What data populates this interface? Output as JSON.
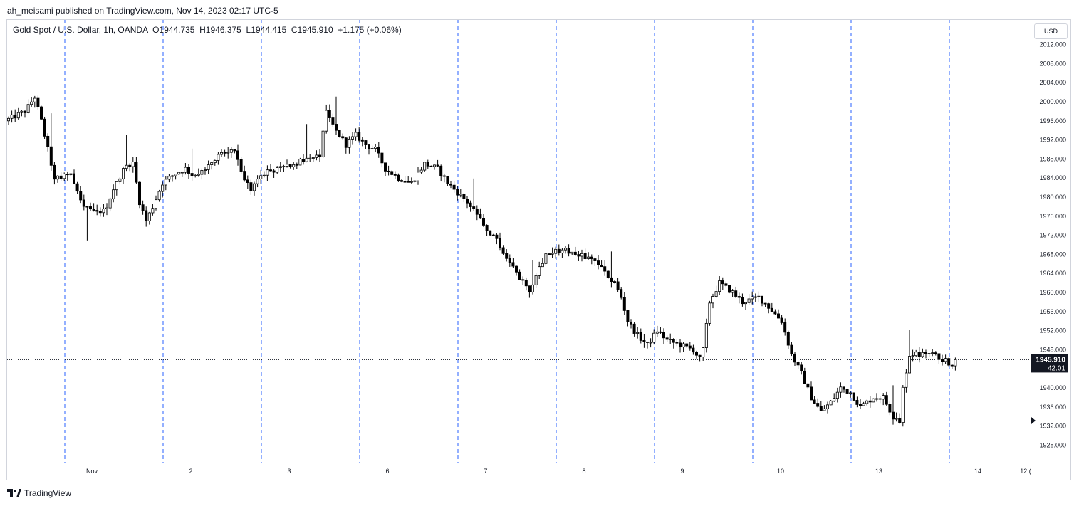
{
  "byline": "ah_meisami published on TradingView.com, Nov 14, 2023 02:17 UTC-5",
  "legend": "Gold Spot / U.S. Dollar, 1h, OANDA  O1944.735  H1946.375  L1944.415  C1945.910  +1.175 (+0.06%)",
  "currency_button": "USD",
  "footer_brand": "TradingView",
  "colors": {
    "candle": "#000000",
    "grid_line": "#2962ff",
    "axis_text": "#131722"
  },
  "chart_data": {
    "type": "candlestick",
    "title": "Gold Spot / U.S. Dollar, 1h, OANDA",
    "ylim": [
      1924,
      2014
    ],
    "y_ticks": [
      "2012.000",
      "2008.000",
      "2004.000",
      "2000.000",
      "1996.000",
      "1992.000",
      "1988.000",
      "1984.000",
      "1980.000",
      "1976.000",
      "1972.000",
      "1968.000",
      "1964.000",
      "1960.000",
      "1956.000",
      "1952.000",
      "1948.000",
      "1944.000",
      "1940.000",
      "1936.000",
      "1932.000",
      "1928.000"
    ],
    "y_tick_values": [
      2012,
      2008,
      2004,
      2000,
      1996,
      1992,
      1988,
      1984,
      1980,
      1976,
      1972,
      1968,
      1964,
      1960,
      1956,
      1952,
      1948,
      1944,
      1940,
      1936,
      1932,
      1928
    ],
    "x_ticks": [
      "Nov",
      "2",
      "3",
      "6",
      "7",
      "8",
      "9",
      "10",
      "13",
      "14",
      "12:("
    ],
    "current_price": 1945.91,
    "price_label": "1945.910",
    "countdown_label": "42:01",
    "anchors": [
      [
        0,
        1996
      ],
      [
        6,
        1998
      ],
      [
        9,
        2001
      ],
      [
        11,
        1996
      ],
      [
        15,
        1984
      ],
      [
        20,
        1985
      ],
      [
        24,
        1978
      ],
      [
        28,
        1977
      ],
      [
        31,
        1978
      ],
      [
        34,
        1983
      ],
      [
        37,
        1987
      ],
      [
        39,
        1987
      ],
      [
        41,
        1979
      ],
      [
        43,
        1975
      ],
      [
        45,
        1978
      ],
      [
        48,
        1983
      ],
      [
        52,
        1985
      ],
      [
        55,
        1986
      ],
      [
        58,
        1984
      ],
      [
        61,
        1986
      ],
      [
        65,
        1989
      ],
      [
        70,
        1990
      ],
      [
        73,
        1984
      ],
      [
        75,
        1981
      ],
      [
        78,
        1985
      ],
      [
        84,
        1986
      ],
      [
        88,
        1987
      ],
      [
        92,
        1988
      ],
      [
        96,
        1989
      ],
      [
        98,
        1998
      ],
      [
        101,
        1994
      ],
      [
        104,
        1991
      ],
      [
        107,
        1993
      ],
      [
        110,
        1991
      ],
      [
        113,
        1990
      ],
      [
        116,
        1986
      ],
      [
        120,
        1984
      ],
      [
        124,
        1983
      ],
      [
        128,
        1987
      ],
      [
        132,
        1986
      ],
      [
        135,
        1983
      ],
      [
        138,
        1981
      ],
      [
        141,
        1979
      ],
      [
        144,
        1976
      ],
      [
        147,
        1973
      ],
      [
        150,
        1971
      ],
      [
        154,
        1966
      ],
      [
        158,
        1962
      ],
      [
        160,
        1960
      ],
      [
        162,
        1964
      ],
      [
        165,
        1968
      ],
      [
        170,
        1969
      ],
      [
        175,
        1968
      ],
      [
        179,
        1967
      ],
      [
        181,
        1966
      ],
      [
        183,
        1964
      ],
      [
        186,
        1962
      ],
      [
        188,
        1959
      ],
      [
        190,
        1954
      ],
      [
        193,
        1951
      ],
      [
        196,
        1949
      ],
      [
        199,
        1952
      ],
      [
        202,
        1950
      ],
      [
        206,
        1949
      ],
      [
        210,
        1948
      ],
      [
        212,
        1946
      ],
      [
        213,
        1948
      ],
      [
        215,
        1958
      ],
      [
        218,
        1962
      ],
      [
        222,
        1960
      ],
      [
        225,
        1958
      ],
      [
        230,
        1959
      ],
      [
        233,
        1957
      ],
      [
        237,
        1954
      ],
      [
        240,
        1947
      ],
      [
        243,
        1943
      ],
      [
        246,
        1938
      ],
      [
        249,
        1935
      ],
      [
        252,
        1937
      ],
      [
        255,
        1940
      ],
      [
        258,
        1939
      ],
      [
        261,
        1936
      ],
      [
        265,
        1938
      ],
      [
        268,
        1938
      ],
      [
        271,
        1934
      ],
      [
        273,
        1933
      ],
      [
        274,
        1940
      ],
      [
        276,
        1947
      ],
      [
        280,
        1947
      ],
      [
        283,
        1947
      ],
      [
        286,
        1946
      ],
      [
        289,
        1945
      ],
      [
        290,
        1945.91
      ]
    ],
    "events": [
      [
        13,
        1
      ],
      [
        24,
        -1
      ],
      [
        36,
        1
      ],
      [
        56,
        1
      ],
      [
        91,
        1
      ],
      [
        100,
        1
      ],
      [
        142,
        1
      ],
      [
        160,
        1
      ],
      [
        184,
        1
      ],
      [
        270,
        1
      ],
      [
        275,
        1
      ]
    ]
  }
}
